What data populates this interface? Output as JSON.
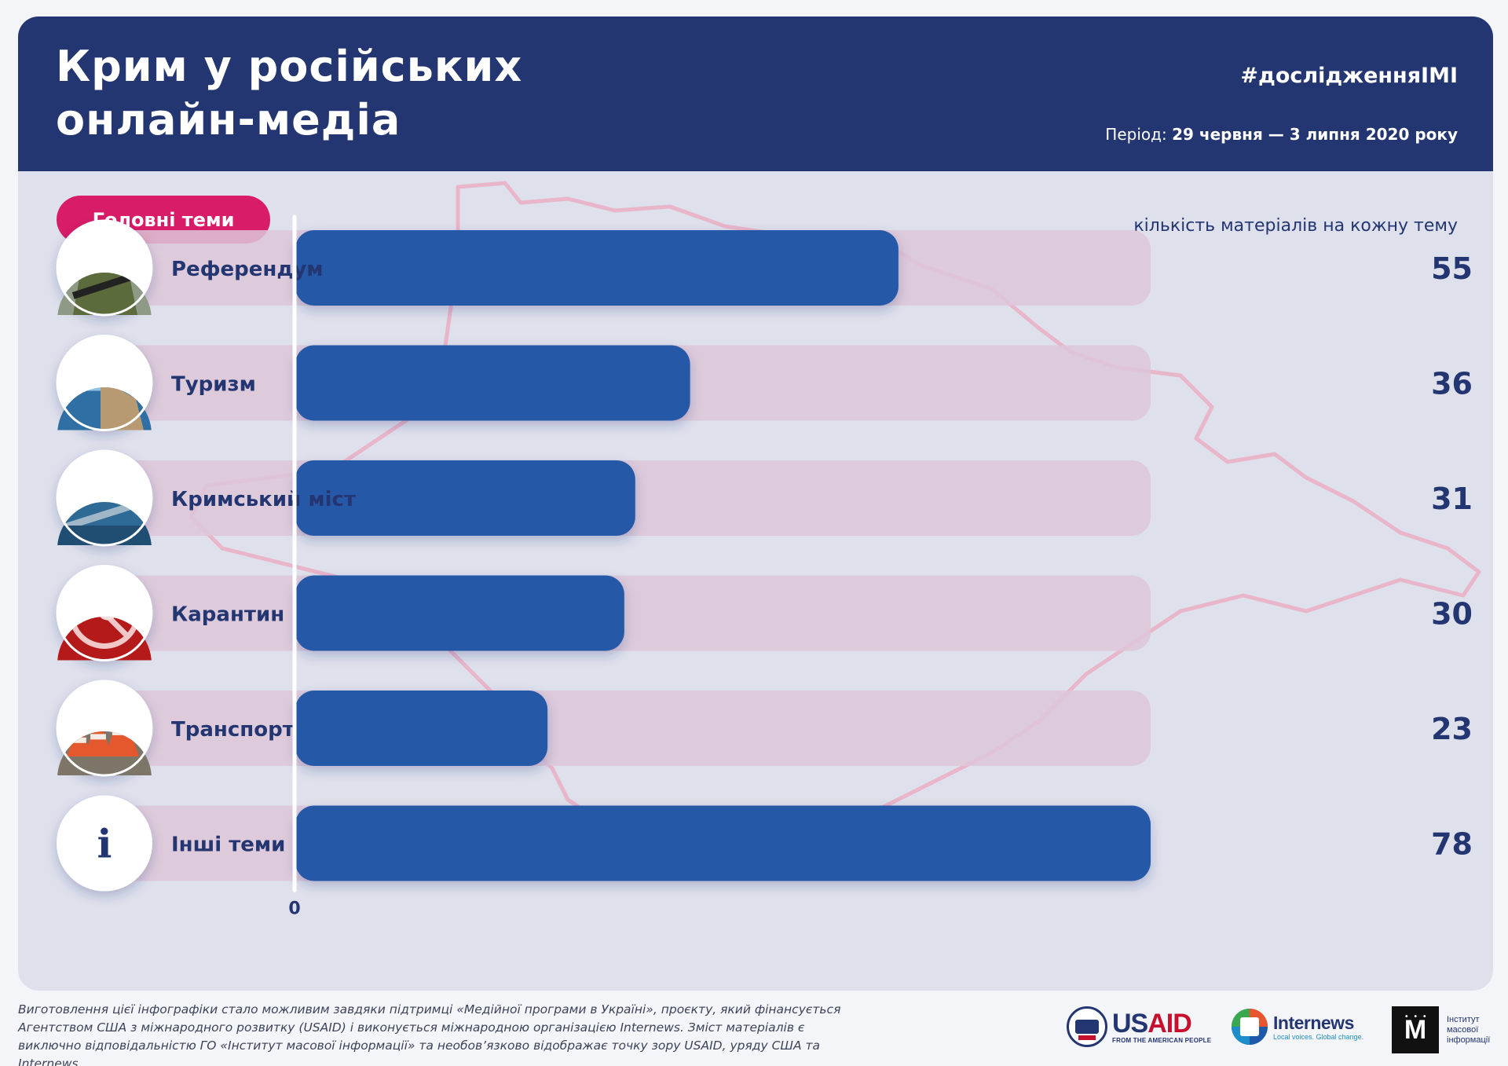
{
  "header": {
    "title_line1": "Крим у російських",
    "title_line2": "онлайн-медіа",
    "hashtag": "#дослідженняІМІ",
    "period_label": "Період:",
    "period_value": "29 червня — 3 липня 2020 року"
  },
  "section": {
    "topics_label": "Головні теми",
    "units_label": "кількість матеріалів на кожну тему"
  },
  "colors": {
    "header_bg": "#243671",
    "card_bg": "#dee0ec",
    "bar_fill": "#2858a8",
    "track_fill": "#ddc6d8",
    "accent_pink": "#d91c67",
    "map_outline": "#e9b5c9",
    "text_dark": "#243671"
  },
  "chart_data": {
    "type": "bar",
    "orientation": "horizontal",
    "categories": [
      "Референдум",
      "Туризм",
      "Кримський міст",
      "Карантин",
      "Транспорт",
      "Інші теми"
    ],
    "values": [
      55,
      36,
      31,
      30,
      23,
      78
    ],
    "icons": [
      "soldier-photo-icon",
      "castle-photo-icon",
      "bridge-photo-icon",
      "quarantine-sign-photo-icon",
      "traffic-cones-photo-icon",
      "info-icon"
    ],
    "xmin_label": "0",
    "xlim": [
      0,
      78
    ],
    "grid": false,
    "legend": "none"
  },
  "footer": {
    "text": "Виготовлення цієї інфографіки стало можливим завдяки підтримці «Медійної програми в Україні», проєкту, який фінансується Агентством США з міжнародного розвитку (USAID) і виконується міжнародною організацією Internews. Зміст матеріалів є виключно відповідальністю ГО «Інститут масової інформації» та необов’язково відображає точку зору USAID, уряду США та Internews.",
    "logos": {
      "usaid_us": "US",
      "usaid_aid": "AID",
      "usaid_sub": "FROM THE AMERICAN PEOPLE",
      "internews_name": "Internews",
      "internews_tagline": "Local voices. Global change.",
      "imi_letter": "М",
      "imi_name": "Інститут масової інформації"
    }
  }
}
